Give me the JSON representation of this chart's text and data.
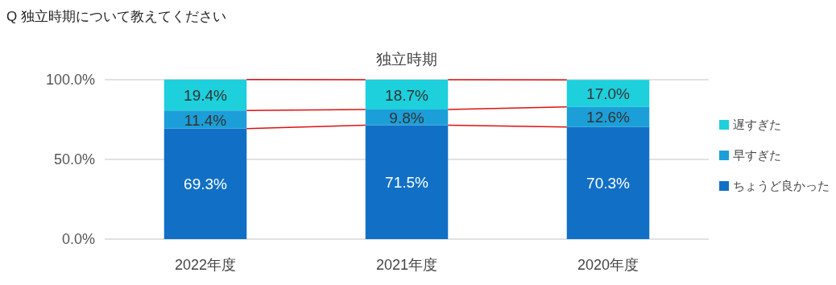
{
  "chart_data": {
    "type": "bar",
    "stacked": true,
    "title": "Q 独立時期について教えてください",
    "subtitle": "独立時期",
    "categories": [
      "2022年度",
      "2021年度",
      "2020年度"
    ],
    "series": [
      {
        "name": "ちょうど良かった",
        "color": "#1170c6",
        "values": [
          69.3,
          71.5,
          70.3
        ],
        "value_labels": [
          "69.3%",
          "71.5%",
          "70.3%"
        ]
      },
      {
        "name": "早すぎた",
        "color": "#1c9fd8",
        "values": [
          11.4,
          9.8,
          12.6
        ],
        "value_labels": [
          "11.4%",
          "9.8%",
          "12.6%"
        ]
      },
      {
        "name": "遅すぎた",
        "color": "#1ecfdc",
        "values": [
          19.4,
          18.7,
          17.0
        ],
        "value_labels": [
          "19.4%",
          "18.7%",
          "17.0%"
        ]
      }
    ],
    "ylim": [
      0,
      100
    ],
    "yticks": [
      {
        "value": 0,
        "label": "0.0%"
      },
      {
        "value": 50,
        "label": "50.0%"
      },
      {
        "value": 100,
        "label": "100.0%"
      }
    ],
    "grid": "y",
    "legend": "right"
  }
}
